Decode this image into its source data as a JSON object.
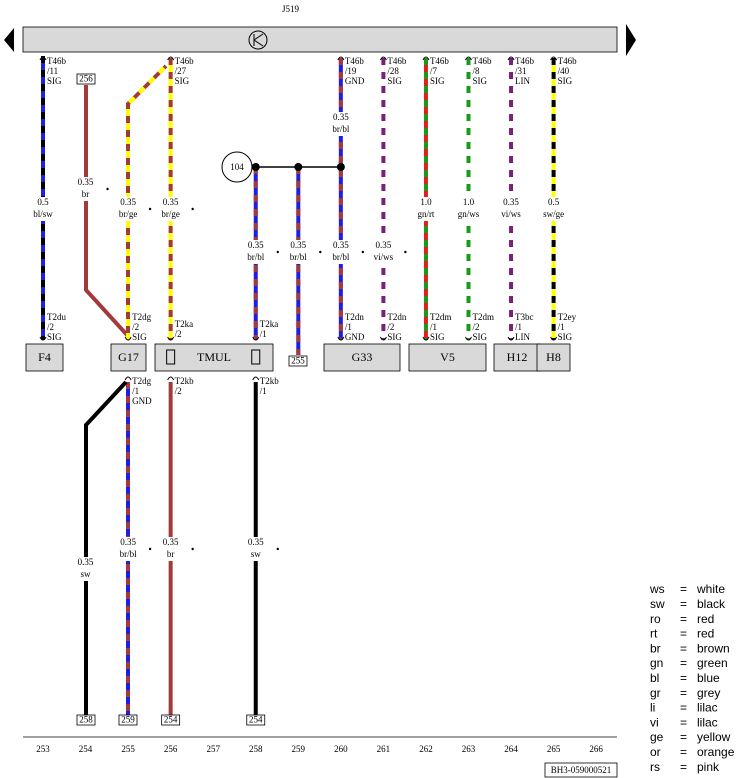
{
  "title": "J519",
  "top_connectors": [
    {
      "pin": "T46b",
      "num": "/11",
      "sig": "SIG"
    },
    {
      "pin": "T46b",
      "num": "/27",
      "sig": "SIG"
    },
    {
      "pin": "T46b",
      "num": "/19",
      "sig": "GND"
    },
    {
      "pin": "T46b",
      "num": "/28",
      "sig": "SIG"
    },
    {
      "pin": "T46b",
      "num": "/7",
      "sig": "SIG"
    },
    {
      "pin": "T46b",
      "num": "/8",
      "sig": "SIG"
    },
    {
      "pin": "T46b",
      "num": "/31",
      "sig": "LIN"
    },
    {
      "pin": "T46b",
      "num": "/40",
      "sig": "SIG"
    }
  ],
  "wire_labels": [
    {
      "size": "0.5",
      "color": "bl/sw"
    },
    {
      "size": "0.35",
      "color": "br"
    },
    {
      "size": "0.35",
      "color": "br/ge"
    },
    {
      "size": "0.35",
      "color": "br/ge"
    },
    {
      "size": "0.35",
      "color": "br/bl"
    },
    {
      "size": "1.0",
      "color": "gn/rt"
    },
    {
      "size": "1.0",
      "color": "gn/ws"
    },
    {
      "size": "0.35",
      "color": "vi/ws"
    },
    {
      "size": "0.5",
      "color": "sw/ge"
    },
    {
      "size": "0.35",
      "color": "br/bl"
    },
    {
      "size": "0.35",
      "color": "br/bl"
    },
    {
      "size": "0.35",
      "color": "br/bl"
    },
    {
      "size": "0.35",
      "color": "vi/ws"
    },
    {
      "size": "0.35",
      "color": "sw"
    },
    {
      "size": "0.35",
      "color": "br/bl"
    },
    {
      "size": "0.35",
      "color": "br"
    },
    {
      "size": "0.35",
      "color": "sw"
    }
  ],
  "node": "104",
  "bottom_connectors": [
    {
      "pin": "T2du",
      "num": "/2",
      "sig": "SIG"
    },
    {
      "pin": "T2dg",
      "num": "/2",
      "sig": "SIG"
    },
    {
      "pin": "T2ka",
      "num": "/2"
    },
    {
      "pin": "T2ka",
      "num": "/1"
    },
    {
      "pin": "T2dn",
      "num": "/1",
      "sig": "GND"
    },
    {
      "pin": "T2dn",
      "num": "/2",
      "sig": "SIG"
    },
    {
      "pin": "T2dm",
      "num": "/1",
      "sig": "SIG"
    },
    {
      "pin": "T2dm",
      "num": "/2",
      "sig": "SIG"
    },
    {
      "pin": "T3bc",
      "num": "/1",
      "sig": "LIN"
    },
    {
      "pin": "T2ey",
      "num": "/1",
      "sig": "SIG"
    },
    {
      "pin": "T2dg",
      "num": "/1",
      "sig": "GND"
    },
    {
      "pin": "T2kb",
      "num": "/2"
    },
    {
      "pin": "T2kb",
      "num": "/1"
    }
  ],
  "components": [
    "F4",
    "G17",
    "TMUL",
    "G33",
    "V5",
    "H12",
    "H8"
  ],
  "ref_boxes": [
    "256",
    "255",
    "258",
    "259",
    "254",
    "254"
  ],
  "columns": [
    "253",
    "254",
    "255",
    "256",
    "257",
    "258",
    "259",
    "260",
    "261",
    "262",
    "263",
    "264",
    "265",
    "266"
  ],
  "legend": {
    "separator": "=",
    "items": [
      {
        "code": "ws",
        "name": "white"
      },
      {
        "code": "sw",
        "name": "black"
      },
      {
        "code": "ro",
        "name": "red"
      },
      {
        "code": "rt",
        "name": "red"
      },
      {
        "code": "br",
        "name": "brown"
      },
      {
        "code": "gn",
        "name": "green"
      },
      {
        "code": "bl",
        "name": "blue"
      },
      {
        "code": "gr",
        "name": "grey"
      },
      {
        "code": "li",
        "name": "lilac"
      },
      {
        "code": "vi",
        "name": "lilac"
      },
      {
        "code": "ge",
        "name": "yellow"
      },
      {
        "code": "or",
        "name": "orange"
      },
      {
        "code": "rs",
        "name": "pink"
      }
    ]
  },
  "footer": "BH3-059000521"
}
